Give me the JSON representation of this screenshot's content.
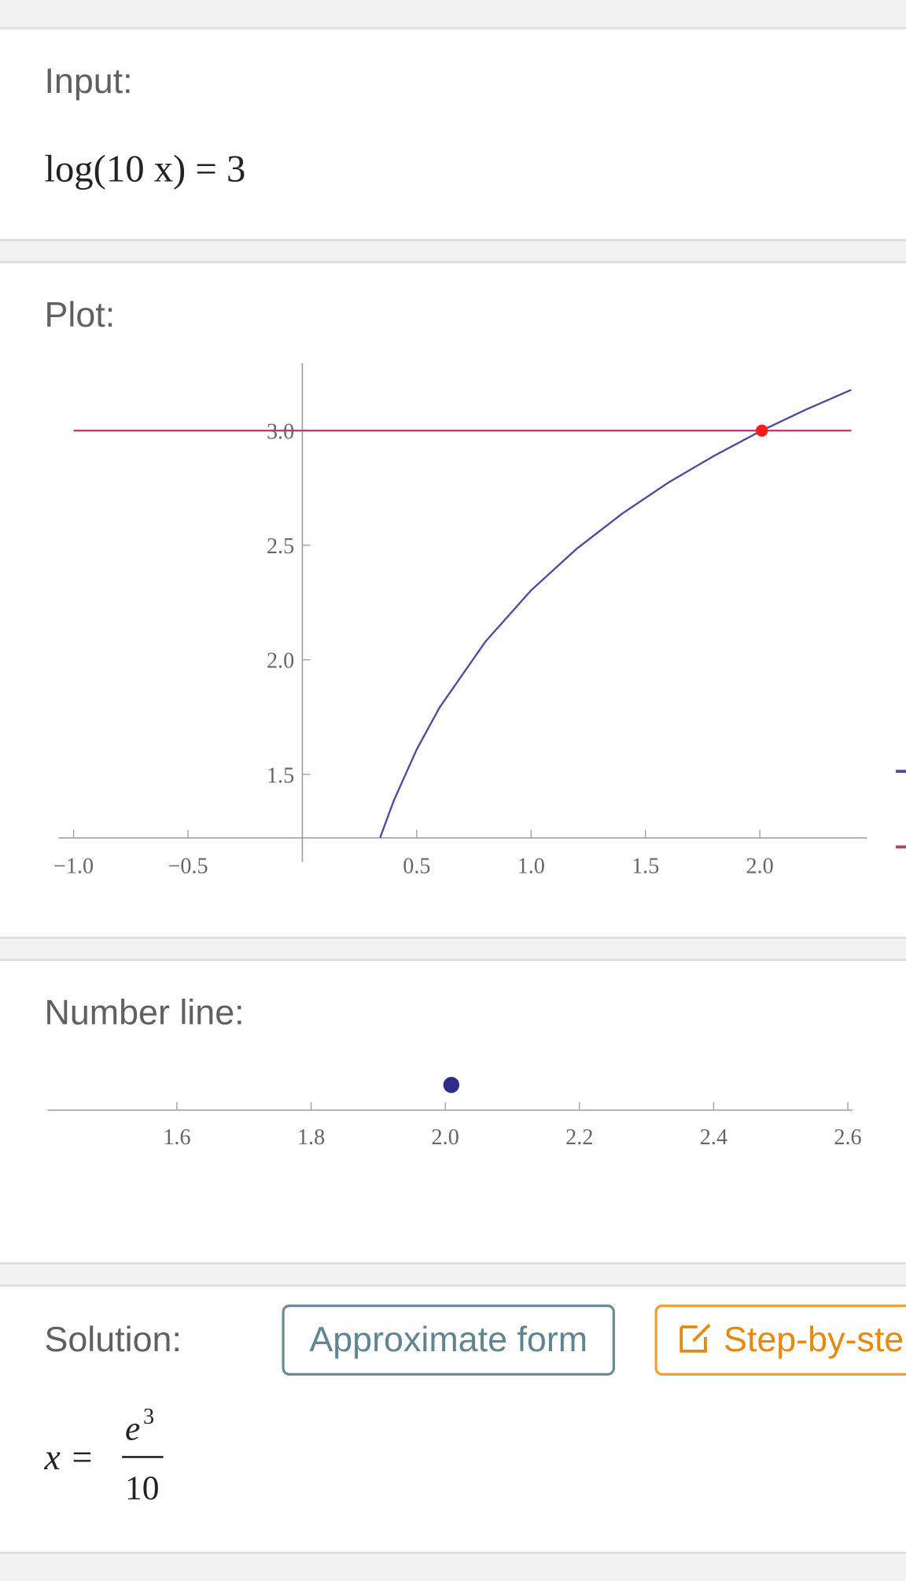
{
  "input": {
    "label": "Input:",
    "expression": "log(10 x) = 3"
  },
  "chart_data": [
    {
      "type": "line",
      "title": "Plot:",
      "series": [
        {
          "color": "#b0407a",
          "x": [
            -1.0,
            2.4
          ],
          "values": [
            3,
            3
          ]
        },
        {
          "color": "#4a4aa0",
          "x": [
            0.34,
            0.4,
            0.5,
            0.6,
            0.8,
            1.0,
            1.2,
            1.4,
            1.6,
            1.8,
            2.0,
            2.2,
            2.4
          ],
          "values": [
            1.224,
            1.386,
            1.609,
            1.792,
            2.079,
            2.303,
            2.485,
            2.639,
            2.773,
            2.89,
            2.996,
            3.091,
            3.178
          ]
        }
      ],
      "highlight": {
        "x": 2.009,
        "y": 3,
        "color": "#ff1a1a"
      },
      "xlim": [
        -1.066,
        2.467
      ],
      "ylim": [
        1.223,
        3.295
      ],
      "xticks": [
        {
          "value": -1,
          "label": "−1.0"
        },
        {
          "value": -0.5,
          "label": "−0.5"
        },
        0.5,
        {
          "value": 1,
          "label": "1.0"
        },
        1.5,
        {
          "value": 2,
          "label": "2.0"
        }
      ],
      "yticks": [
        1.5,
        {
          "value": 2,
          "label": "2.0"
        },
        2.5,
        {
          "value": 3,
          "label": "3.0"
        }
      ]
    },
    {
      "type": "numberline",
      "title": "Number line:",
      "values": [
        2.009
      ],
      "color": "#2e2e8a",
      "xlim": [
        1.407,
        2.607
      ],
      "xticks": [
        1.6,
        1.8,
        {
          "value": 2,
          "label": "2.0"
        },
        2.2,
        2.4,
        2.6
      ]
    }
  ],
  "solution": {
    "label": "Solution:",
    "button_approximate": "Approximate form",
    "button_steps": "Step-by-step",
    "lhs": "x =",
    "numerator": "e",
    "exponent": "3",
    "denominator": "10"
  }
}
